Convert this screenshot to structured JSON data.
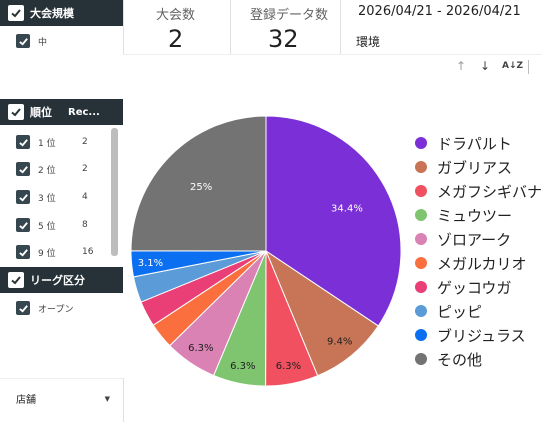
{
  "sidebar": {
    "tournament_scale": {
      "header": "大会規模",
      "options": [
        {
          "label": "中"
        }
      ]
    },
    "rank": {
      "header": "順位",
      "count_header": "Rec...",
      "rows": [
        {
          "label": "1 位",
          "count": "2"
        },
        {
          "label": "2 位",
          "count": "2"
        },
        {
          "label": "3 位",
          "count": "4"
        },
        {
          "label": "5 位",
          "count": "8"
        },
        {
          "label": "9 位",
          "count": "16"
        }
      ]
    },
    "league": {
      "header": "リーグ区分",
      "options": [
        {
          "label": "オープン"
        }
      ]
    },
    "store_dropdown": {
      "label": "店舗"
    }
  },
  "metrics": {
    "tournaments": {
      "label": "大会数",
      "value": "2"
    },
    "records": {
      "label": "登録データ数",
      "value": "32"
    }
  },
  "date_range": "2026/04/21 - 2026/04/21",
  "environment_label": "環境",
  "toolbar": {
    "up_icon": "arrow-up-icon",
    "down_icon": "arrow-down-icon",
    "sort_icon": "sort-az-icon"
  },
  "chart_data": {
    "type": "pie",
    "slices": [
      {
        "name": "ドラパルト",
        "value": 34.4,
        "label": "34.4%",
        "color": "#7b2fd6"
      },
      {
        "name": "ガブリアス",
        "value": 9.4,
        "label": "9.4%",
        "color": "#c87557"
      },
      {
        "name": "メガフシギバナ",
        "value": 6.3,
        "label": "6.3%",
        "color": "#f0505f"
      },
      {
        "name": "ミュウツー",
        "value": 6.3,
        "label": "6.3%",
        "color": "#7fc56f"
      },
      {
        "name": "ゾロアーク",
        "value": 6.3,
        "label": "6.3%",
        "color": "#db82b5"
      },
      {
        "name": "メガルカリオ",
        "value": 3.1,
        "label": "",
        "color": "#fb6f3f"
      },
      {
        "name": "ゲッコウガ",
        "value": 3.1,
        "label": "",
        "color": "#ea3f76"
      },
      {
        "name": "ピッピ",
        "value": 3.1,
        "label": "",
        "color": "#5b9bd8"
      },
      {
        "name": "ブリジュラス",
        "value": 3.1,
        "label": "3.1%",
        "color": "#0b6ff2"
      },
      {
        "name": "その他",
        "value": 25.0,
        "label": "25%",
        "color": "#737373"
      }
    ]
  }
}
